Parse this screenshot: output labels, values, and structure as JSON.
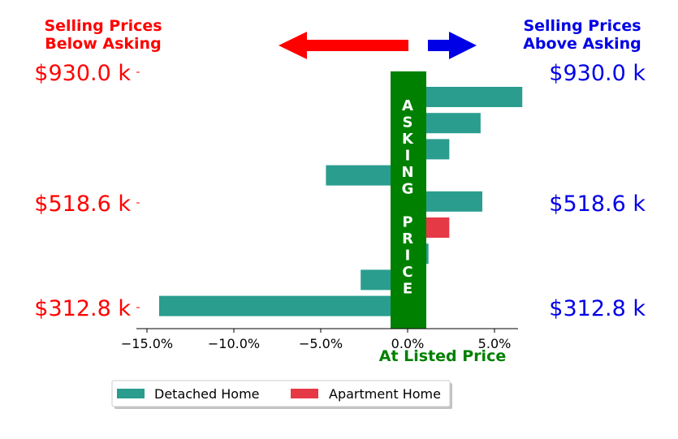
{
  "colors": {
    "below": "#ff0000",
    "above": "#0000e6",
    "band": "#008000",
    "detached": "#2a9d8f",
    "apartment": "#e63946"
  },
  "headers": {
    "below_line1": "Selling Prices",
    "below_line2": "Below Asking",
    "above_line1": "Selling Prices",
    "above_line2": "Above Asking"
  },
  "band_label": "ASKING PRICE",
  "xlabel": "At Listed Price",
  "chart_data": {
    "type": "bar",
    "orientation": "horizontal",
    "xlim": [
      -15.5,
      7.5
    ],
    "xticks": [
      -15,
      -10,
      -5,
      0,
      5
    ],
    "xtick_labels": [
      "−15.0%",
      "−10.0%",
      "−5.0%",
      "0.0%",
      "5.0%"
    ],
    "ytick_labels": [
      "$930.0 k",
      "$518.6 k",
      "$312.8 k"
    ],
    "legend": {
      "placement": "bottom-center"
    },
    "series": [
      {
        "name": "Detached Home",
        "color": "#2a9d8f"
      },
      {
        "name": "Apartment Home",
        "color": "#e63946"
      }
    ],
    "bars": [
      {
        "series": "Detached Home",
        "value": 6.6
      },
      {
        "series": "Detached Home",
        "value": 4.2
      },
      {
        "series": "Detached Home",
        "value": 2.4
      },
      {
        "series": "Detached Home",
        "value": -4.7
      },
      {
        "series": "Detached Home",
        "value": 4.3
      },
      {
        "series": "Apartment Home",
        "value": 2.4
      },
      {
        "series": "Detached Home",
        "value": 1.2
      },
      {
        "series": "Detached Home",
        "value": -2.7
      },
      {
        "series": "Detached Home",
        "value": -14.3
      }
    ]
  }
}
